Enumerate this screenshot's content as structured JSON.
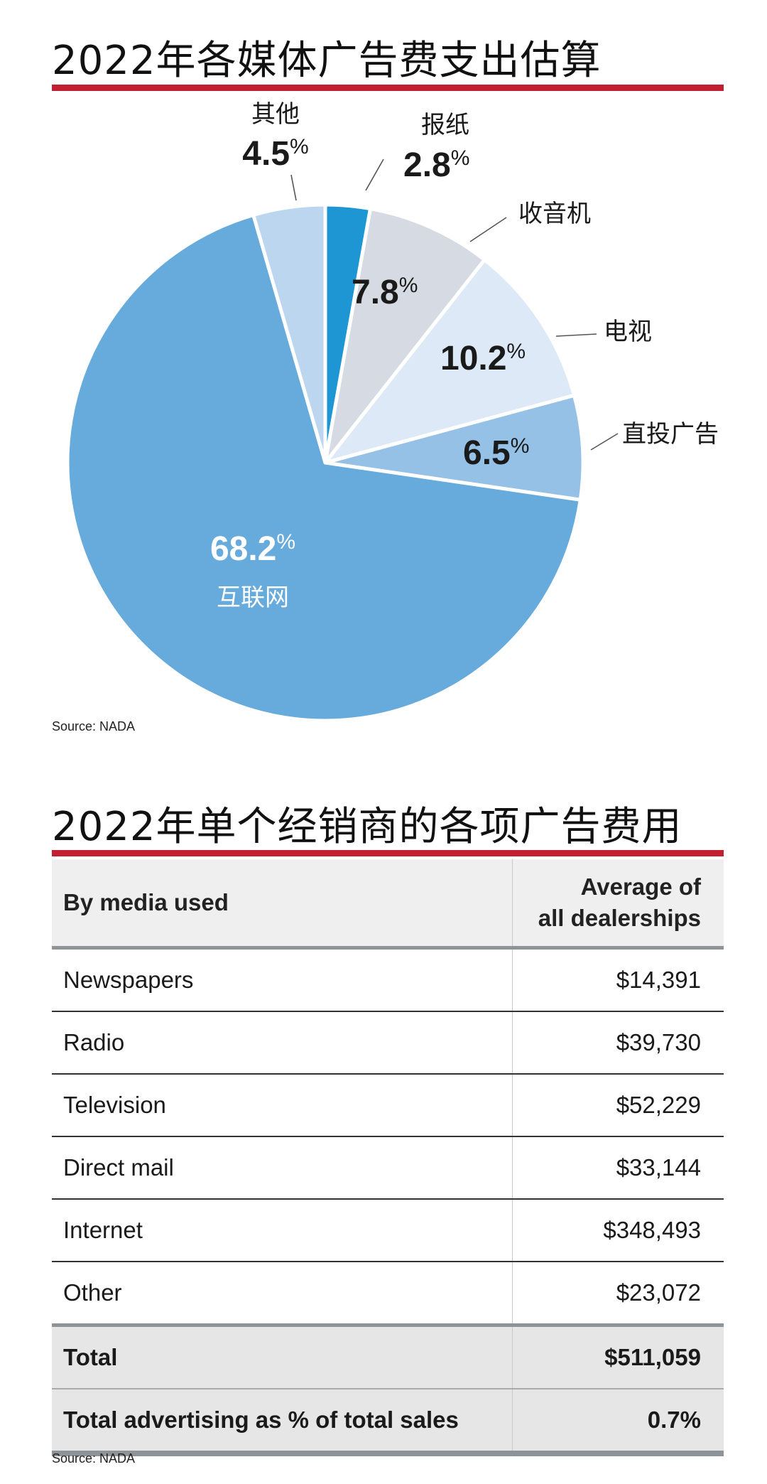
{
  "pie_title": "2022年各媒体广告费支出估算",
  "pie_source": "Source: NADA",
  "table_title": "2022年单个经销商的各项广告费用",
  "table_source": "Source: NADA",
  "chart_data": [
    {
      "type": "pie",
      "title": "2022年各媒体广告费支出估算",
      "percent_suffix": "%",
      "slices": [
        {
          "label": "报纸",
          "value": 2.8,
          "value_text": "2.8",
          "color": "#1f96d4"
        },
        {
          "label": "收音机",
          "value": 7.8,
          "value_text": "7.8",
          "color": "#d6dae2"
        },
        {
          "label": "电视",
          "value": 10.2,
          "value_text": "10.2",
          "color": "#dde9f6"
        },
        {
          "label": "直投广告",
          "value": 6.5,
          "value_text": "6.5",
          "color": "#95c1e6"
        },
        {
          "label": "互联网",
          "value": 68.2,
          "value_text": "68.2",
          "color": "#66abdc"
        },
        {
          "label": "其他",
          "value": 4.5,
          "value_text": "4.5",
          "color": "#bcd6f0"
        }
      ]
    },
    {
      "type": "table",
      "title": "2022年单个经销商的各项广告费用",
      "columns": [
        "By media used",
        "Average of all dealerships"
      ],
      "column_lines": [
        [
          "By media used"
        ],
        [
          "Average of",
          "all dealerships"
        ]
      ],
      "rows": [
        [
          "Newspapers",
          "$14,391"
        ],
        [
          "Radio",
          "$39,730"
        ],
        [
          "Television",
          "$52,229"
        ],
        [
          "Direct mail",
          "$33,144"
        ],
        [
          "Internet",
          "$348,493"
        ],
        [
          "Other",
          "$23,072"
        ]
      ],
      "total": [
        "Total",
        "$511,059"
      ],
      "percent_of_sales": [
        "Total advertising as % of total sales",
        "0.7%"
      ]
    }
  ]
}
